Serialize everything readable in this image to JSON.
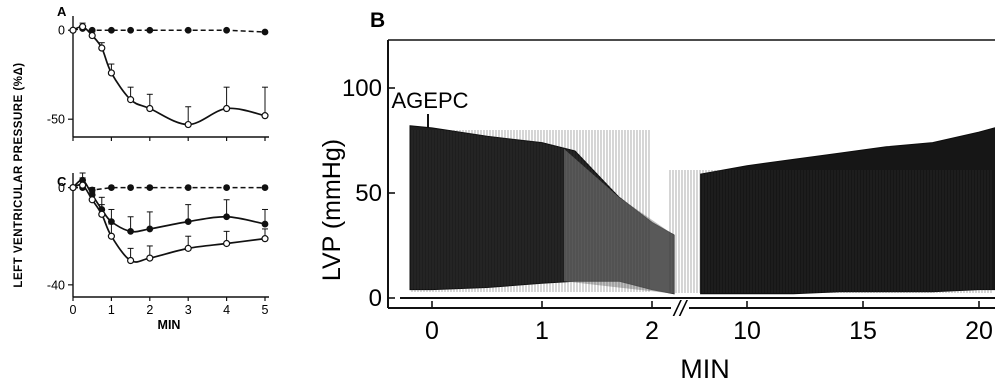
{
  "figure": {
    "shared_ylabel": "LEFT VENTRICULAR PRESSURE (%Δ)"
  },
  "chart_data": [
    {
      "panel": "A",
      "type": "line",
      "xlabel": "",
      "ylabel": "LEFT VENTRICULAR PRESSURE (%Δ)",
      "xlim": [
        0,
        5
      ],
      "ylim": [
        -60,
        8
      ],
      "yticks": [
        0,
        -50
      ],
      "series": [
        {
          "style": "dashed-filled",
          "x": [
            0,
            0.25,
            0.5,
            1,
            1.5,
            2,
            3,
            4,
            5
          ],
          "y": [
            0,
            1,
            0,
            0,
            0,
            0,
            0,
            0,
            -1
          ]
        },
        {
          "style": "solid-open",
          "x": [
            0,
            0.25,
            0.5,
            0.75,
            1,
            1.5,
            2,
            3,
            4,
            5
          ],
          "y": [
            0,
            2,
            -3,
            -10,
            -24,
            -39,
            -44,
            -53,
            -44,
            -48
          ],
          "err": [
            0,
            2,
            2,
            3,
            5,
            7,
            8,
            10,
            12,
            16
          ]
        }
      ]
    },
    {
      "panel": "C",
      "type": "line",
      "xlabel": "MIN",
      "ylabel": "",
      "xlim": [
        0,
        5
      ],
      "ylim": [
        -45,
        6
      ],
      "xticks": [
        0,
        1,
        2,
        3,
        4,
        5
      ],
      "yticks": [
        0,
        -40
      ],
      "series": [
        {
          "style": "dashed-filled",
          "x": [
            0,
            0.25,
            0.5,
            1,
            1.5,
            2,
            3,
            4,
            5
          ],
          "y": [
            0,
            0,
            -1,
            0,
            0,
            0,
            0,
            0,
            0
          ]
        },
        {
          "style": "solid-filled",
          "x": [
            0,
            0.25,
            0.5,
            0.75,
            1,
            1.5,
            2,
            3,
            4,
            5
          ],
          "y": [
            0,
            3,
            -3,
            -9,
            -14,
            -18,
            -17,
            -14,
            -12,
            -15
          ],
          "err": [
            0,
            3,
            3,
            5,
            5,
            6,
            7,
            7,
            7,
            6
          ]
        },
        {
          "style": "solid-open",
          "x": [
            0,
            0.25,
            0.5,
            0.75,
            1,
            1.5,
            2,
            3,
            4,
            5
          ],
          "y": [
            0,
            1,
            -5,
            -11,
            -20,
            -30,
            -29,
            -25,
            -23,
            -21
          ],
          "err": [
            0,
            3,
            3,
            4,
            5,
            5,
            5,
            5,
            5,
            4
          ]
        }
      ]
    },
    {
      "panel": "B",
      "type": "area",
      "title": "",
      "ylabel": "LVP (mmHg)",
      "xlabel": "MIN",
      "annotation": "AGEPC",
      "annotation_x": 0,
      "yticks": [
        0,
        50,
        100
      ],
      "xticks_first": [
        0,
        1,
        2
      ],
      "xticks_second": [
        10,
        15,
        20
      ],
      "axis_break": "//",
      "segments": [
        {
          "x": [
            -0.2,
            0,
            0.5,
            1,
            1.3,
            1.7,
            2,
            2.2
          ],
          "top": [
            82,
            81,
            77,
            74,
            70,
            48,
            36,
            30
          ],
          "bottom": [
            4,
            4,
            5,
            7,
            8,
            8,
            4,
            2
          ]
        },
        {
          "x": [
            8,
            10,
            12,
            14,
            16,
            18,
            20,
            21
          ],
          "top": [
            59,
            63,
            66,
            69,
            72,
            74,
            79,
            82
          ],
          "bottom": [
            2,
            2,
            2,
            3,
            3,
            3,
            4,
            4
          ]
        }
      ]
    }
  ]
}
